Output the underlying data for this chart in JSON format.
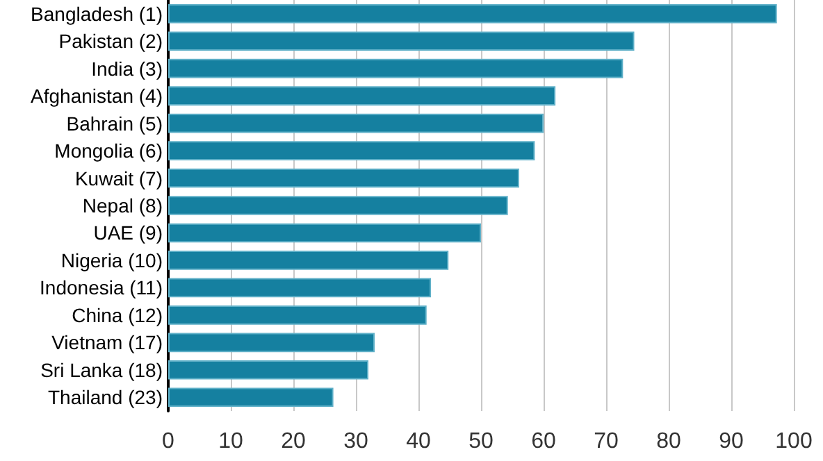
{
  "chart_data": {
    "type": "bar",
    "orientation": "horizontal",
    "categories": [
      "Bangladesh (1)",
      "Pakistan (2)",
      "India (3)",
      "Afghanistan (4)",
      "Bahrain (5)",
      "Mongolia (6)",
      "Kuwait (7)",
      "Nepal (8)",
      "UAE (9)",
      "Nigeria (10)",
      "Indonesia (11)",
      "China (12)",
      "Vietnam (17)",
      "Sri Lanka (18)",
      "Thailand (23)"
    ],
    "values": [
      97.3,
      74.5,
      72.7,
      61.9,
      60.0,
      58.6,
      56.1,
      54.3,
      50.0,
      44.8,
      42.0,
      41.3,
      33.0,
      32.0,
      26.4
    ],
    "color": "#1580a0",
    "xlim": [
      0,
      100
    ],
    "xticks": [
      0,
      10,
      20,
      30,
      40,
      50,
      60,
      70,
      80,
      90,
      100
    ],
    "grid": "x"
  }
}
